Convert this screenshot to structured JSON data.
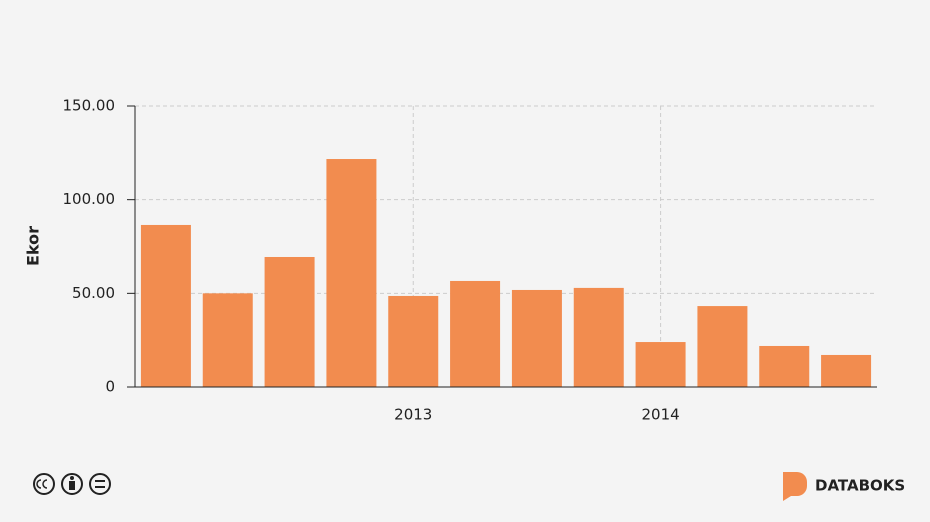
{
  "chart_data": {
    "type": "bar",
    "y_label": "Ekor",
    "categories": [
      null,
      null,
      null,
      null,
      "2013",
      null,
      null,
      null,
      "2014",
      null,
      null,
      null
    ],
    "values": [
      86.5,
      50,
      69.4,
      121.7,
      48.6,
      56.6,
      51.8,
      52.9,
      24,
      43.2,
      21.9,
      17.1
    ],
    "color": "#f28c4f",
    "ylim": [
      0,
      150
    ],
    "yticks": [
      0,
      {
        "value": 50,
        "label": "50.00"
      },
      {
        "value": 100,
        "label": "100.00"
      },
      {
        "value": 150,
        "label": "150.00"
      }
    ],
    "grid": true
  },
  "brand": "DATABOKS"
}
